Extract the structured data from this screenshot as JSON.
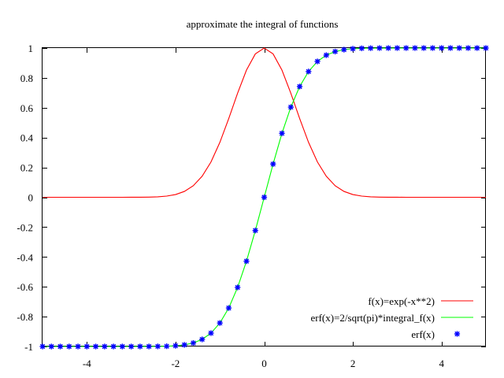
{
  "chart_data": {
    "type": "line",
    "title": "approximate the integral of functions",
    "xlabel": "",
    "ylabel": "",
    "xlim": [
      -5,
      5
    ],
    "ylim": [
      -1,
      1
    ],
    "grid": false,
    "legend_position": "bottom-right",
    "x_ticks": [
      -4,
      -2,
      0,
      2,
      4
    ],
    "x_tick_labels": [
      "-4",
      "-2",
      "0",
      "2",
      "4"
    ],
    "y_ticks": [
      -1,
      -0.8,
      -0.6,
      -0.4,
      -0.2,
      0,
      0.2,
      0.4,
      0.6,
      0.8,
      1
    ],
    "y_tick_labels": [
      "-1",
      "-0.8",
      "-0.6",
      "-0.4",
      "-0.2",
      "0",
      "0.2",
      "0.4",
      "0.6",
      "0.8",
      "1"
    ],
    "series": [
      {
        "name": "f(x)=exp(-x**2)",
        "style": "line",
        "color": "#ff0000",
        "x": [
          -5,
          -4.8,
          -4.6,
          -4.4,
          -4.2,
          -4,
          -3.8,
          -3.6,
          -3.4,
          -3.2,
          -3,
          -2.8,
          -2.6,
          -2.4,
          -2.2,
          -2,
          -1.8,
          -1.6,
          -1.4,
          -1.2,
          -1,
          -0.8,
          -0.6,
          -0.4,
          -0.2,
          0,
          0.2,
          0.4,
          0.6,
          0.8,
          1,
          1.2,
          1.4,
          1.6,
          1.8,
          2,
          2.2,
          2.4,
          2.6,
          2.8,
          3,
          3.2,
          3.4,
          3.6,
          3.8,
          4,
          4.2,
          4.4,
          4.6,
          4.8,
          5
        ],
        "y": [
          0,
          0,
          0,
          0,
          0,
          0,
          0,
          0,
          0,
          0,
          0.0001,
          0.0004,
          0.0012,
          0.0032,
          0.0079,
          0.0183,
          0.0392,
          0.0773,
          0.1409,
          0.2369,
          0.3679,
          0.5273,
          0.6977,
          0.8521,
          0.9608,
          1,
          0.9608,
          0.8521,
          0.6977,
          0.5273,
          0.3679,
          0.2369,
          0.1409,
          0.0773,
          0.0392,
          0.0183,
          0.0079,
          0.0032,
          0.0012,
          0.0004,
          0.0001,
          0,
          0,
          0,
          0,
          0,
          0,
          0,
          0,
          0,
          0
        ]
      },
      {
        "name": "erf(x)=2/sqrt(pi)*integral_f(x)",
        "style": "line",
        "color": "#00ff00",
        "x": [
          -5,
          -4.8,
          -4.6,
          -4.4,
          -4.2,
          -4,
          -3.8,
          -3.6,
          -3.4,
          -3.2,
          -3,
          -2.8,
          -2.6,
          -2.4,
          -2.2,
          -2,
          -1.8,
          -1.6,
          -1.4,
          -1.2,
          -1,
          -0.8,
          -0.6,
          -0.4,
          -0.2,
          0,
          0.2,
          0.4,
          0.6,
          0.8,
          1,
          1.2,
          1.4,
          1.6,
          1.8,
          2,
          2.2,
          2.4,
          2.6,
          2.8,
          3,
          3.2,
          3.4,
          3.6,
          3.8,
          4,
          4.2,
          4.4,
          4.6,
          4.8,
          5
        ],
        "y": [
          -1,
          -1,
          -1,
          -1,
          -1,
          -1,
          -1,
          -1,
          -1,
          -1,
          -1,
          -0.9999,
          -0.9998,
          -0.9993,
          -0.9981,
          -0.9953,
          -0.9891,
          -0.9763,
          -0.9523,
          -0.9103,
          -0.8427,
          -0.7421,
          -0.6039,
          -0.4284,
          -0.2227,
          0,
          0.2227,
          0.4284,
          0.6039,
          0.7421,
          0.8427,
          0.9103,
          0.9523,
          0.9763,
          0.9891,
          0.9953,
          0.9981,
          0.9993,
          0.9998,
          0.9999,
          1,
          1,
          1,
          1,
          1,
          1,
          1,
          1,
          1,
          1,
          1
        ]
      },
      {
        "name": "erf(x)",
        "style": "points",
        "color": "#0000ff",
        "x": [
          -5,
          -4.8,
          -4.6,
          -4.4,
          -4.2,
          -4,
          -3.8,
          -3.6,
          -3.4,
          -3.2,
          -3,
          -2.8,
          -2.6,
          -2.4,
          -2.2,
          -2,
          -1.8,
          -1.6,
          -1.4,
          -1.2,
          -1,
          -0.8,
          -0.6,
          -0.4,
          -0.2,
          0,
          0.2,
          0.4,
          0.6,
          0.8,
          1,
          1.2,
          1.4,
          1.6,
          1.8,
          2,
          2.2,
          2.4,
          2.6,
          2.8,
          3,
          3.2,
          3.4,
          3.6,
          3.8,
          4,
          4.2,
          4.4,
          4.6,
          4.8,
          5
        ],
        "y": [
          -1,
          -1,
          -1,
          -1,
          -1,
          -1,
          -1,
          -1,
          -1,
          -1,
          -1,
          -0.9999,
          -0.9998,
          -0.9993,
          -0.9981,
          -0.9953,
          -0.9891,
          -0.9763,
          -0.9523,
          -0.9103,
          -0.8427,
          -0.7421,
          -0.6039,
          -0.4284,
          -0.2227,
          0,
          0.2227,
          0.4284,
          0.6039,
          0.7421,
          0.8427,
          0.9103,
          0.9523,
          0.9763,
          0.9891,
          0.9953,
          0.9981,
          0.9993,
          0.9998,
          0.9999,
          1,
          1,
          1,
          1,
          1,
          1,
          1,
          1,
          1,
          1,
          1
        ]
      }
    ]
  }
}
